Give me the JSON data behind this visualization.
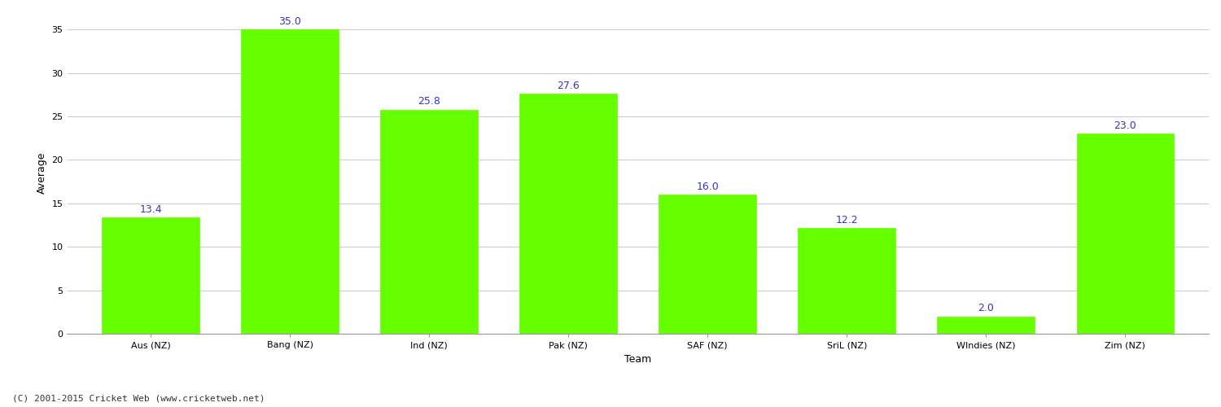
{
  "categories": [
    "Aus (NZ)",
    "Bang (NZ)",
    "Ind (NZ)",
    "Pak (NZ)",
    "SAF (NZ)",
    "SriL (NZ)",
    "WIndies (NZ)",
    "Zim (NZ)"
  ],
  "values": [
    13.4,
    35.0,
    25.8,
    27.6,
    16.0,
    12.2,
    2.0,
    23.0
  ],
  "bar_color": "#66ff00",
  "bar_edge_color": "#66ff00",
  "label_color": "#3333cc",
  "xlabel": "Team",
  "ylabel": "Average",
  "ylim": [
    0,
    37
  ],
  "yticks": [
    0,
    5,
    10,
    15,
    20,
    25,
    30,
    35
  ],
  "grid_color": "#cccccc",
  "background_color": "#ffffff",
  "footer_text": "(C) 2001-2015 Cricket Web (www.cricketweb.net)",
  "label_fontsize": 9,
  "axis_label_fontsize": 9,
  "tick_fontsize": 8,
  "footer_fontsize": 8,
  "bar_width": 0.7
}
